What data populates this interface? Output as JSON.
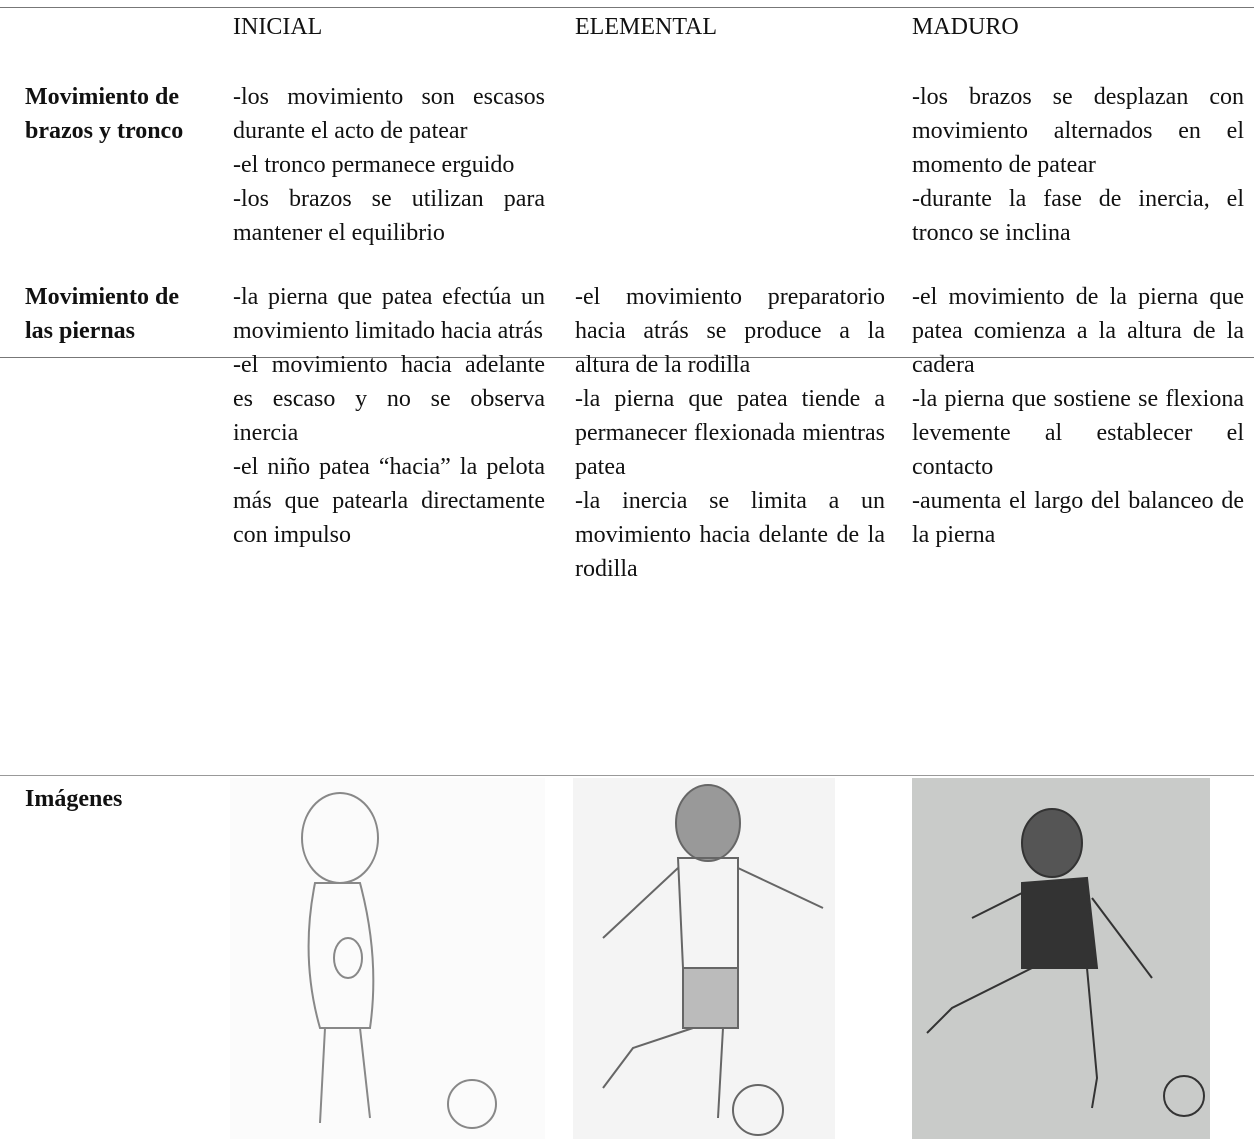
{
  "header": {
    "columns": [
      "INICIAL",
      "ELEMENTAL",
      "MADURO"
    ]
  },
  "rows": [
    {
      "label": "Movimiento de brazos y tronco",
      "inicial": [
        "-los movimiento son escasos durante el acto de patear",
        "-el tronco permanece erguido",
        "-los brazos se utilizan para mantener el equilibrio"
      ],
      "maduro": [
        "-los brazos se desplazan con movimiento alternados en el momento de patear",
        "-durante la fase de inercia, el tronco se inclina"
      ]
    },
    {
      "label": "Movimiento de las piernas",
      "inicial": [
        "-la pierna que patea efectúa un movimiento limitado hacia atrás",
        "-el movimiento hacia adelante es escaso y no se observa inercia",
        "-el niño patea “hacia” la pelota más que patearla directamente con impulso"
      ],
      "elemental": [
        "-el movimiento preparatorio hacia atrás se produce a la altura de la rodilla",
        "-la pierna que patea tiende a permanecer flexionada mientras patea",
        "-la inercia se limita a un movimiento hacia delante de la rodilla"
      ],
      "maduro": [
        "-el movimiento de la pierna que patea comienza a la altura de la cadera",
        "-la pierna que sostiene se flexiona levemente al establecer el contacto",
        "-aumenta el largo del balanceo de la pierna"
      ]
    },
    {
      "label": "Imágenes"
    }
  ]
}
